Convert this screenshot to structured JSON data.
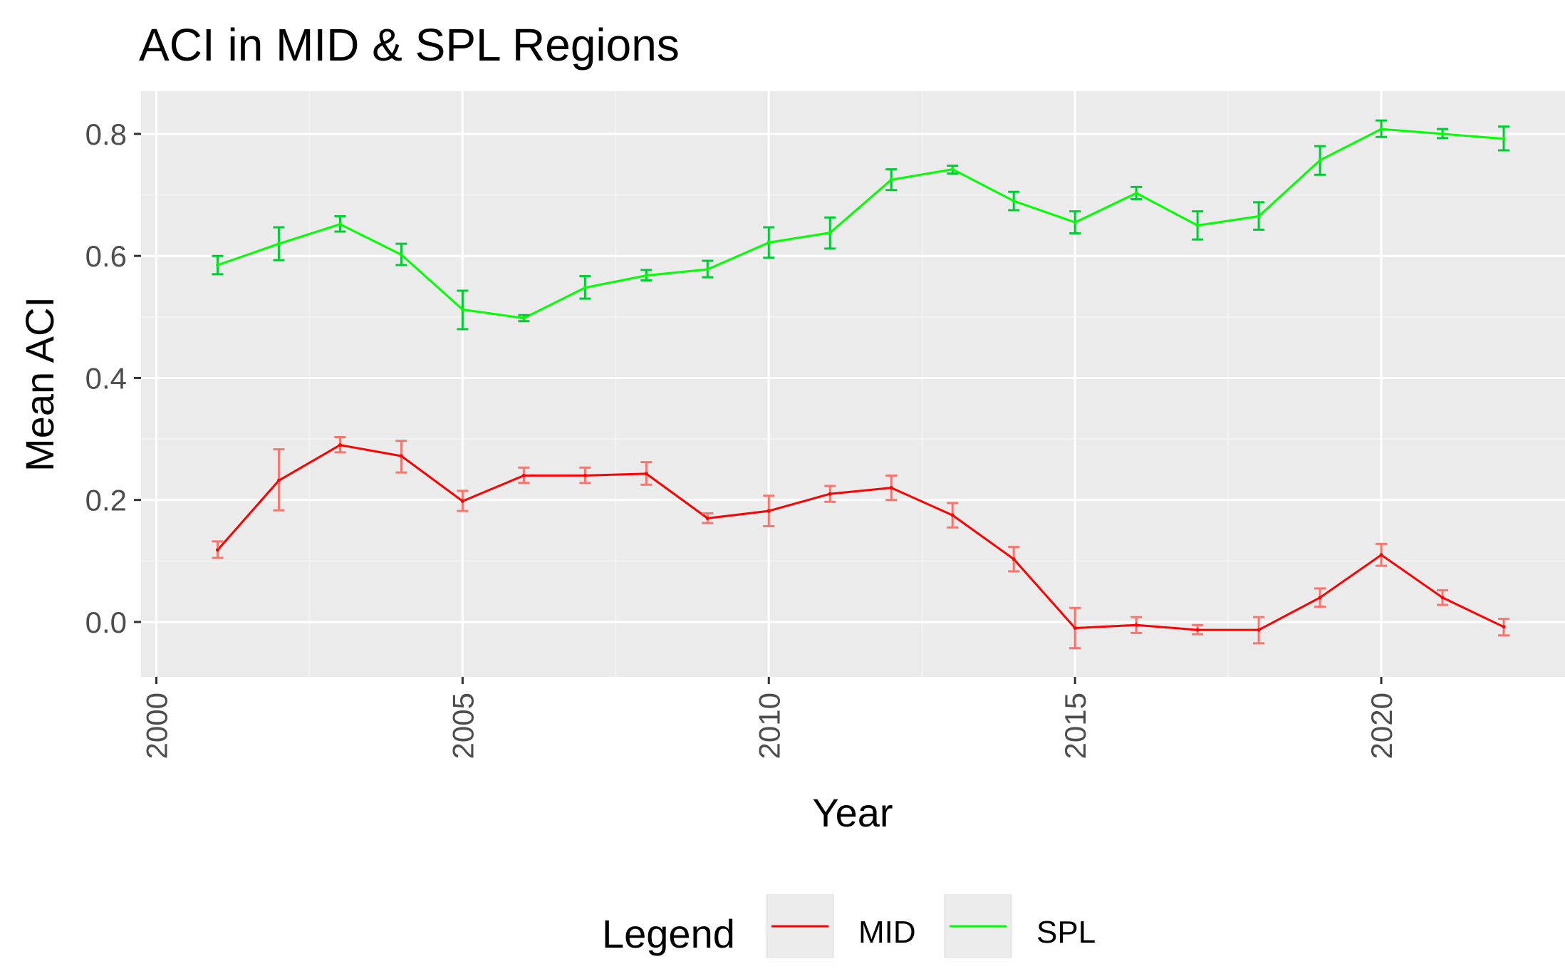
{
  "chart_data": {
    "type": "line",
    "title": "ACI in MID & SPL Regions",
    "xlabel": "Year",
    "ylabel": "Mean ACI",
    "xlim": [
      1999.75,
      2023.0
    ],
    "ylim": [
      -0.09,
      0.87
    ],
    "x_ticks": [
      "2000",
      "2005",
      "2010",
      "2015",
      "2020"
    ],
    "y_ticks": [
      "0.0",
      "0.2",
      "0.4",
      "0.6",
      "0.8"
    ],
    "x_tick_values": [
      2000,
      2005,
      2010,
      2015,
      2020
    ],
    "y_tick_values": [
      0.0,
      0.2,
      0.4,
      0.6,
      0.8
    ],
    "grid": true,
    "legend_position": "bottom",
    "legend_title": "Legend",
    "x": [
      2001,
      2002,
      2003,
      2004,
      2005,
      2006,
      2007,
      2008,
      2009,
      2010,
      2011,
      2012,
      2013,
      2014,
      2015,
      2016,
      2017,
      2018,
      2019,
      2020,
      2021,
      2022
    ],
    "series": [
      {
        "name": "MID",
        "color": "#ff0000",
        "error_color": "#f8766d",
        "values": [
          0.118,
          0.232,
          0.29,
          0.272,
          0.198,
          0.24,
          0.24,
          0.243,
          0.17,
          0.182,
          0.21,
          0.22,
          0.175,
          0.103,
          -0.01,
          -0.005,
          -0.013,
          -0.013,
          0.04,
          0.11,
          0.04,
          -0.008
        ],
        "lower": [
          0.105,
          0.183,
          0.278,
          0.245,
          0.182,
          0.228,
          0.228,
          0.225,
          0.162,
          0.157,
          0.197,
          0.2,
          0.155,
          0.083,
          -0.043,
          -0.018,
          -0.02,
          -0.035,
          0.025,
          0.092,
          0.028,
          -0.022
        ],
        "upper": [
          0.132,
          0.283,
          0.303,
          0.297,
          0.215,
          0.253,
          0.253,
          0.262,
          0.178,
          0.207,
          0.223,
          0.24,
          0.195,
          0.123,
          0.023,
          0.008,
          -0.005,
          0.008,
          0.055,
          0.128,
          0.052,
          0.005
        ]
      },
      {
        "name": "SPL",
        "color": "#00ff00",
        "error_color": "#00cc33",
        "values": [
          0.585,
          0.62,
          0.652,
          0.602,
          0.512,
          0.498,
          0.548,
          0.568,
          0.578,
          0.622,
          0.638,
          0.725,
          0.742,
          0.69,
          0.655,
          0.703,
          0.65,
          0.665,
          0.757,
          0.808,
          0.8,
          0.792
        ],
        "lower": [
          0.57,
          0.593,
          0.64,
          0.585,
          0.48,
          0.493,
          0.53,
          0.56,
          0.565,
          0.597,
          0.612,
          0.708,
          0.735,
          0.675,
          0.637,
          0.693,
          0.627,
          0.643,
          0.733,
          0.795,
          0.793,
          0.773
        ],
        "upper": [
          0.6,
          0.647,
          0.665,
          0.62,
          0.543,
          0.503,
          0.567,
          0.577,
          0.592,
          0.647,
          0.663,
          0.742,
          0.748,
          0.705,
          0.673,
          0.713,
          0.673,
          0.688,
          0.78,
          0.822,
          0.808,
          0.812
        ]
      }
    ]
  }
}
